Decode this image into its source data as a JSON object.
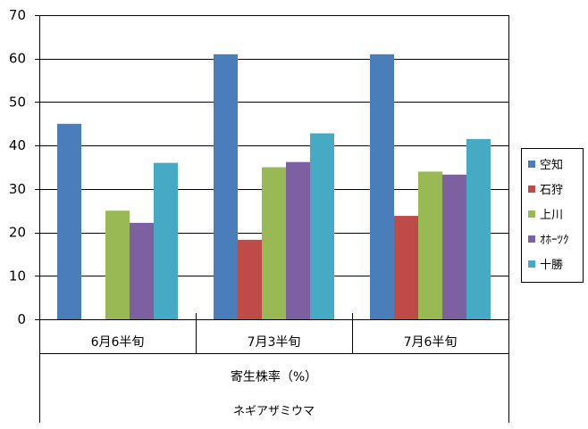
{
  "chart_data": {
    "type": "bar",
    "categories": [
      "6月6半旬",
      "7月3半旬",
      "7月6半旬"
    ],
    "series": [
      {
        "name": "空知",
        "color": "#4a7ebb",
        "values": [
          45,
          61,
          61
        ]
      },
      {
        "name": "石狩",
        "color": "#be4b48",
        "values": [
          null,
          18.3,
          23.8
        ]
      },
      {
        "name": "上川",
        "color": "#98b954",
        "values": [
          25,
          35,
          34
        ]
      },
      {
        "name": "ｵﾎｰﾂｸ",
        "color": "#7d60a0",
        "values": [
          22.2,
          36.2,
          33.3
        ]
      },
      {
        "name": "十勝",
        "color": "#46aac5",
        "values": [
          36,
          42.8,
          41.5
        ]
      }
    ],
    "ylim": [
      0,
      70
    ],
    "yticks": [
      0,
      10,
      20,
      30,
      40,
      50,
      60,
      70
    ],
    "ytick_labels": [
      "0",
      "10",
      "20",
      "30",
      "40",
      "50",
      "60",
      "70"
    ],
    "xlabel": "寄生株率（%）",
    "group_label": "ネギアザミウマ",
    "grid": true,
    "legend_position": "right"
  }
}
